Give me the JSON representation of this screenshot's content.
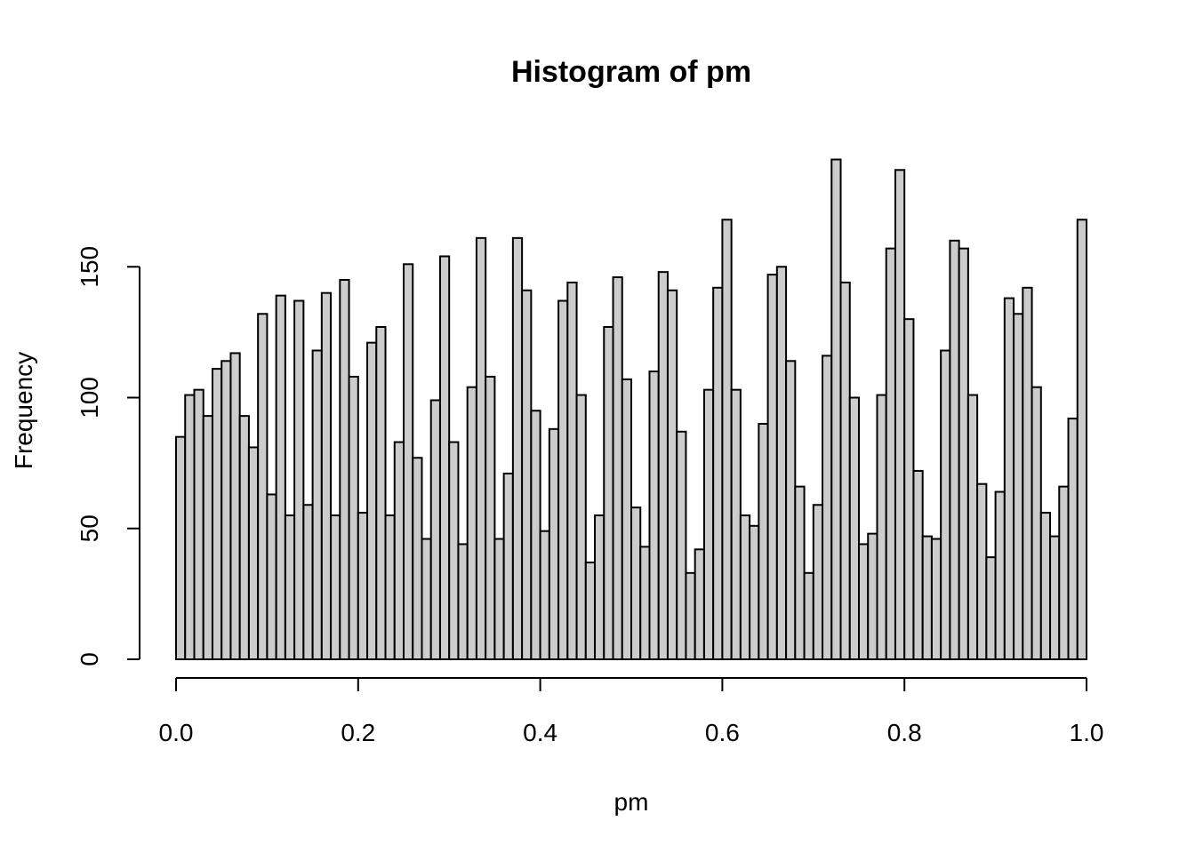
{
  "chart_data": {
    "type": "bar",
    "title": "Histogram of pm",
    "xlabel": "pm",
    "ylabel": "Frequency",
    "xlim": [
      0,
      1
    ],
    "ylim": [
      0,
      190
    ],
    "bin_width": 0.01,
    "x_ticks": [
      "0.0",
      "0.2",
      "0.4",
      "0.6",
      "0.8",
      "1.0"
    ],
    "y_ticks": [
      "0",
      "50",
      "100",
      "150"
    ],
    "grid": false,
    "bar_color": "#cccccc",
    "values": [
      85,
      101,
      103,
      93,
      111,
      114,
      117,
      93,
      81,
      132,
      63,
      139,
      55,
      137,
      59,
      118,
      140,
      55,
      145,
      108,
      56,
      121,
      127,
      55,
      83,
      151,
      77,
      46,
      99,
      154,
      83,
      44,
      104,
      161,
      108,
      46,
      71,
      161,
      141,
      95,
      49,
      88,
      137,
      144,
      101,
      37,
      55,
      127,
      146,
      107,
      58,
      43,
      110,
      148,
      141,
      87,
      33,
      42,
      103,
      142,
      168,
      103,
      55,
      51,
      90,
      147,
      150,
      114,
      66,
      33,
      59,
      116,
      191,
      144,
      100,
      44,
      48,
      101,
      157,
      187,
      130,
      72,
      47,
      46,
      118,
      160,
      157,
      101,
      67,
      39,
      64,
      138,
      132,
      142,
      104,
      56,
      47,
      66,
      92,
      168
    ]
  }
}
